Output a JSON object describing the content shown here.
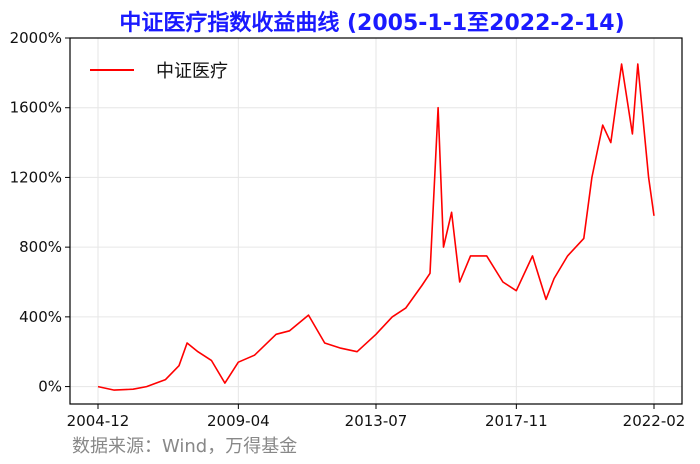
{
  "colors": {
    "title": "#1a1aff",
    "series": "#ff0000",
    "source_text": "#888888",
    "grid": "#e6e6e6",
    "axis": "#000000"
  },
  "chart_data": {
    "type": "line",
    "title": "中证医疗指数收益曲线 (2005-1-1至2022-2-14)",
    "xlabel": "",
    "ylabel": "",
    "x_ticks": [
      "2004-12",
      "2009-04",
      "2013-07",
      "2017-11",
      "2022-02"
    ],
    "y_ticks": [
      "0%",
      "400%",
      "800%",
      "1200%",
      "1600%",
      "2000%"
    ],
    "ylim": [
      -100,
      2000
    ],
    "xlim": [
      "2004-12",
      "2022-02"
    ],
    "grid": true,
    "legend_position": "top-left",
    "series": [
      {
        "name": "中证医疗",
        "x": [
          "2004-12",
          "2005-06",
          "2006-01",
          "2006-06",
          "2007-01",
          "2007-06",
          "2007-09",
          "2008-01",
          "2008-06",
          "2008-11",
          "2009-04",
          "2009-10",
          "2010-06",
          "2010-11",
          "2011-06",
          "2011-12",
          "2012-06",
          "2012-12",
          "2013-07",
          "2014-01",
          "2014-06",
          "2014-12",
          "2015-03",
          "2015-06",
          "2015-08",
          "2015-11",
          "2016-02",
          "2016-06",
          "2016-12",
          "2017-06",
          "2017-11",
          "2018-05",
          "2018-10",
          "2019-01",
          "2019-06",
          "2019-12",
          "2020-03",
          "2020-07",
          "2020-10",
          "2021-02",
          "2021-06",
          "2021-08",
          "2021-12",
          "2022-02"
        ],
        "y": [
          0,
          -20,
          -15,
          0,
          40,
          120,
          250,
          200,
          150,
          20,
          140,
          180,
          300,
          320,
          410,
          250,
          220,
          200,
          300,
          400,
          450,
          580,
          650,
          1600,
          800,
          1000,
          600,
          750,
          750,
          600,
          550,
          750,
          500,
          620,
          750,
          850,
          1200,
          1500,
          1400,
          1850,
          1450,
          1850,
          1200,
          980
        ]
      }
    ]
  },
  "source": "数据来源：Wind，万得基金"
}
